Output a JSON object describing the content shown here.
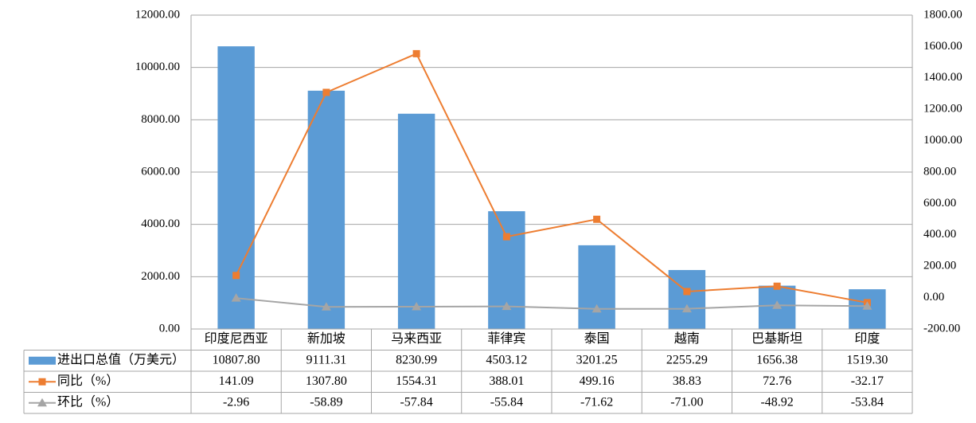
{
  "chart_data": {
    "type": "bar",
    "categories": [
      "印度尼西亚",
      "新加坡",
      "马来西亚",
      "菲律宾",
      "泰国",
      "越南",
      "巴基斯坦",
      "印度"
    ],
    "series": [
      {
        "name": "进出口总值（万美元）",
        "chart_type": "bar",
        "axis": "left",
        "color": "#5b9bd5",
        "values": [
          10807.8,
          9111.31,
          8230.99,
          4503.12,
          3201.25,
          2255.29,
          1656.38,
          1519.3
        ],
        "labels": [
          "10807.80",
          "9111.31",
          "8230.99",
          "4503.12",
          "3201.25",
          "2255.29",
          "1656.38",
          "1519.30"
        ]
      },
      {
        "name": "同比（%）",
        "chart_type": "line",
        "axis": "right",
        "color": "#ed7d31",
        "marker": "square",
        "values": [
          141.09,
          1307.8,
          1554.31,
          388.01,
          499.16,
          38.83,
          72.76,
          -32.17
        ],
        "labels": [
          "141.09",
          "1307.80",
          "1554.31",
          "388.01",
          "499.16",
          "38.83",
          "72.76",
          "-32.17"
        ]
      },
      {
        "name": "环比（%）",
        "chart_type": "line",
        "axis": "right",
        "color": "#a5a5a5",
        "marker": "triangle",
        "values": [
          -2.96,
          -58.89,
          -57.84,
          -55.84,
          -71.62,
          -71.0,
          -48.92,
          -53.84
        ],
        "labels": [
          "-2.96",
          "-58.89",
          "-57.84",
          "-55.84",
          "-71.62",
          "-71.00",
          "-48.92",
          "-53.84"
        ]
      }
    ],
    "y_left": {
      "range": [
        0,
        12000
      ],
      "ticks": [
        0,
        2000,
        4000,
        6000,
        8000,
        10000,
        12000
      ],
      "tick_labels": [
        "0.00",
        "2000.00",
        "4000.00",
        "6000.00",
        "8000.00",
        "10000.00",
        "12000.00"
      ]
    },
    "y_right": {
      "range": [
        -200,
        1800
      ],
      "ticks": [
        -200,
        0,
        200,
        400,
        600,
        800,
        1000,
        1200,
        1400,
        1600,
        1800
      ],
      "tick_labels": [
        "-200.00",
        "0.00",
        "200.00",
        "400.00",
        "600.00",
        "800.00",
        "1000.00",
        "1200.00",
        "1400.00",
        "1600.00",
        "1800.00"
      ]
    },
    "grid": true,
    "legend": "data table below chart",
    "gridline_color": "#a6a6a6"
  }
}
